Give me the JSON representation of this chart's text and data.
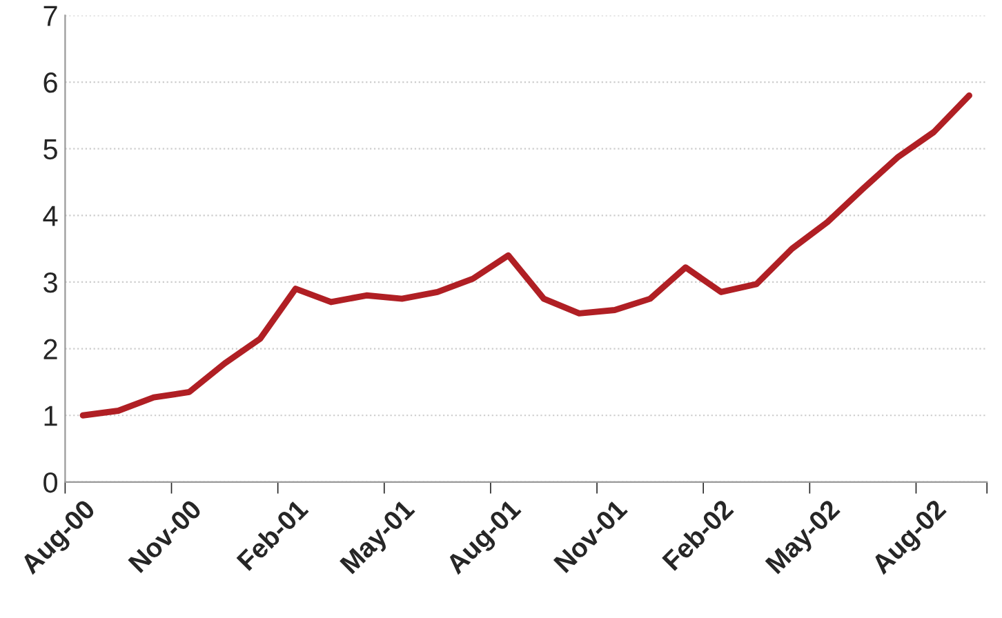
{
  "chart_data": {
    "type": "line",
    "categories": [
      "Aug-00",
      null,
      null,
      "Nov-00",
      null,
      null,
      "Feb-01",
      null,
      null,
      "May-01",
      null,
      null,
      "Aug-01",
      null,
      null,
      "Nov-01",
      null,
      null,
      "Feb-02",
      null,
      null,
      "May-02",
      null,
      null,
      "Aug-02",
      null
    ],
    "series": [
      {
        "color": "#b01f24",
        "values": [
          1.0,
          1.07,
          1.27,
          1.35,
          1.78,
          2.15,
          2.9,
          2.7,
          2.8,
          2.75,
          2.85,
          3.05,
          3.4,
          2.75,
          2.53,
          2.58,
          2.75,
          3.22,
          2.85,
          2.97,
          3.5,
          3.9,
          4.4,
          4.88,
          5.25,
          5.8
        ]
      }
    ],
    "ylim": [
      0,
      7
    ],
    "yticks": [
      0,
      1,
      2,
      3,
      4,
      5,
      6,
      7
    ],
    "grid": "y",
    "marker": "none",
    "line_style": "solid"
  }
}
